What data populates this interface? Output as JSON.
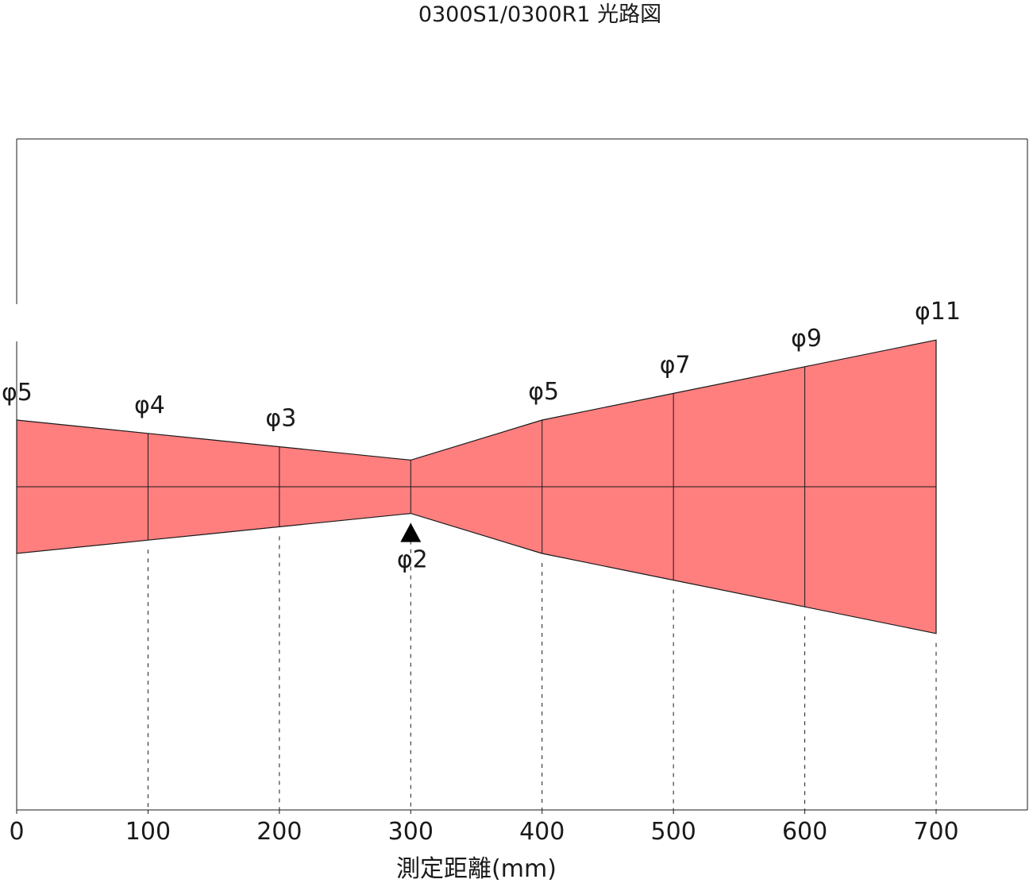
{
  "title": "0300S1/0300R1 光路図",
  "x_axis_label": "測定距離(mm)",
  "colors": {
    "beam_fill": "#ff7f7f",
    "line": "#1a1a1a",
    "background": "#ffffff"
  },
  "chart_data": {
    "type": "diagram",
    "title": "0300S1/0300R1 光路図",
    "xlabel": "測定距離(mm)",
    "xlim": [
      0,
      700
    ],
    "x_ticks": [
      0,
      100,
      200,
      300,
      400,
      500,
      600,
      700
    ],
    "tick_labels": [
      "0",
      "100",
      "200",
      "300",
      "400",
      "500",
      "600",
      "700"
    ],
    "focal_point_marker": {
      "distance": 300,
      "shape": "triangle-up"
    },
    "beam_points": [
      {
        "distance": 0,
        "diameter": 5,
        "label": "φ5"
      },
      {
        "distance": 100,
        "diameter": 4,
        "label": "φ4"
      },
      {
        "distance": 200,
        "diameter": 3,
        "label": "φ3"
      },
      {
        "distance": 300,
        "diameter": 2,
        "label": "φ2"
      },
      {
        "distance": 400,
        "diameter": 5,
        "label": "φ5"
      },
      {
        "distance": 500,
        "diameter": 7,
        "label": "φ7"
      },
      {
        "distance": 600,
        "diameter": 9,
        "label": "φ9"
      },
      {
        "distance": 700,
        "diameter": 11,
        "label": "φ11"
      }
    ]
  }
}
